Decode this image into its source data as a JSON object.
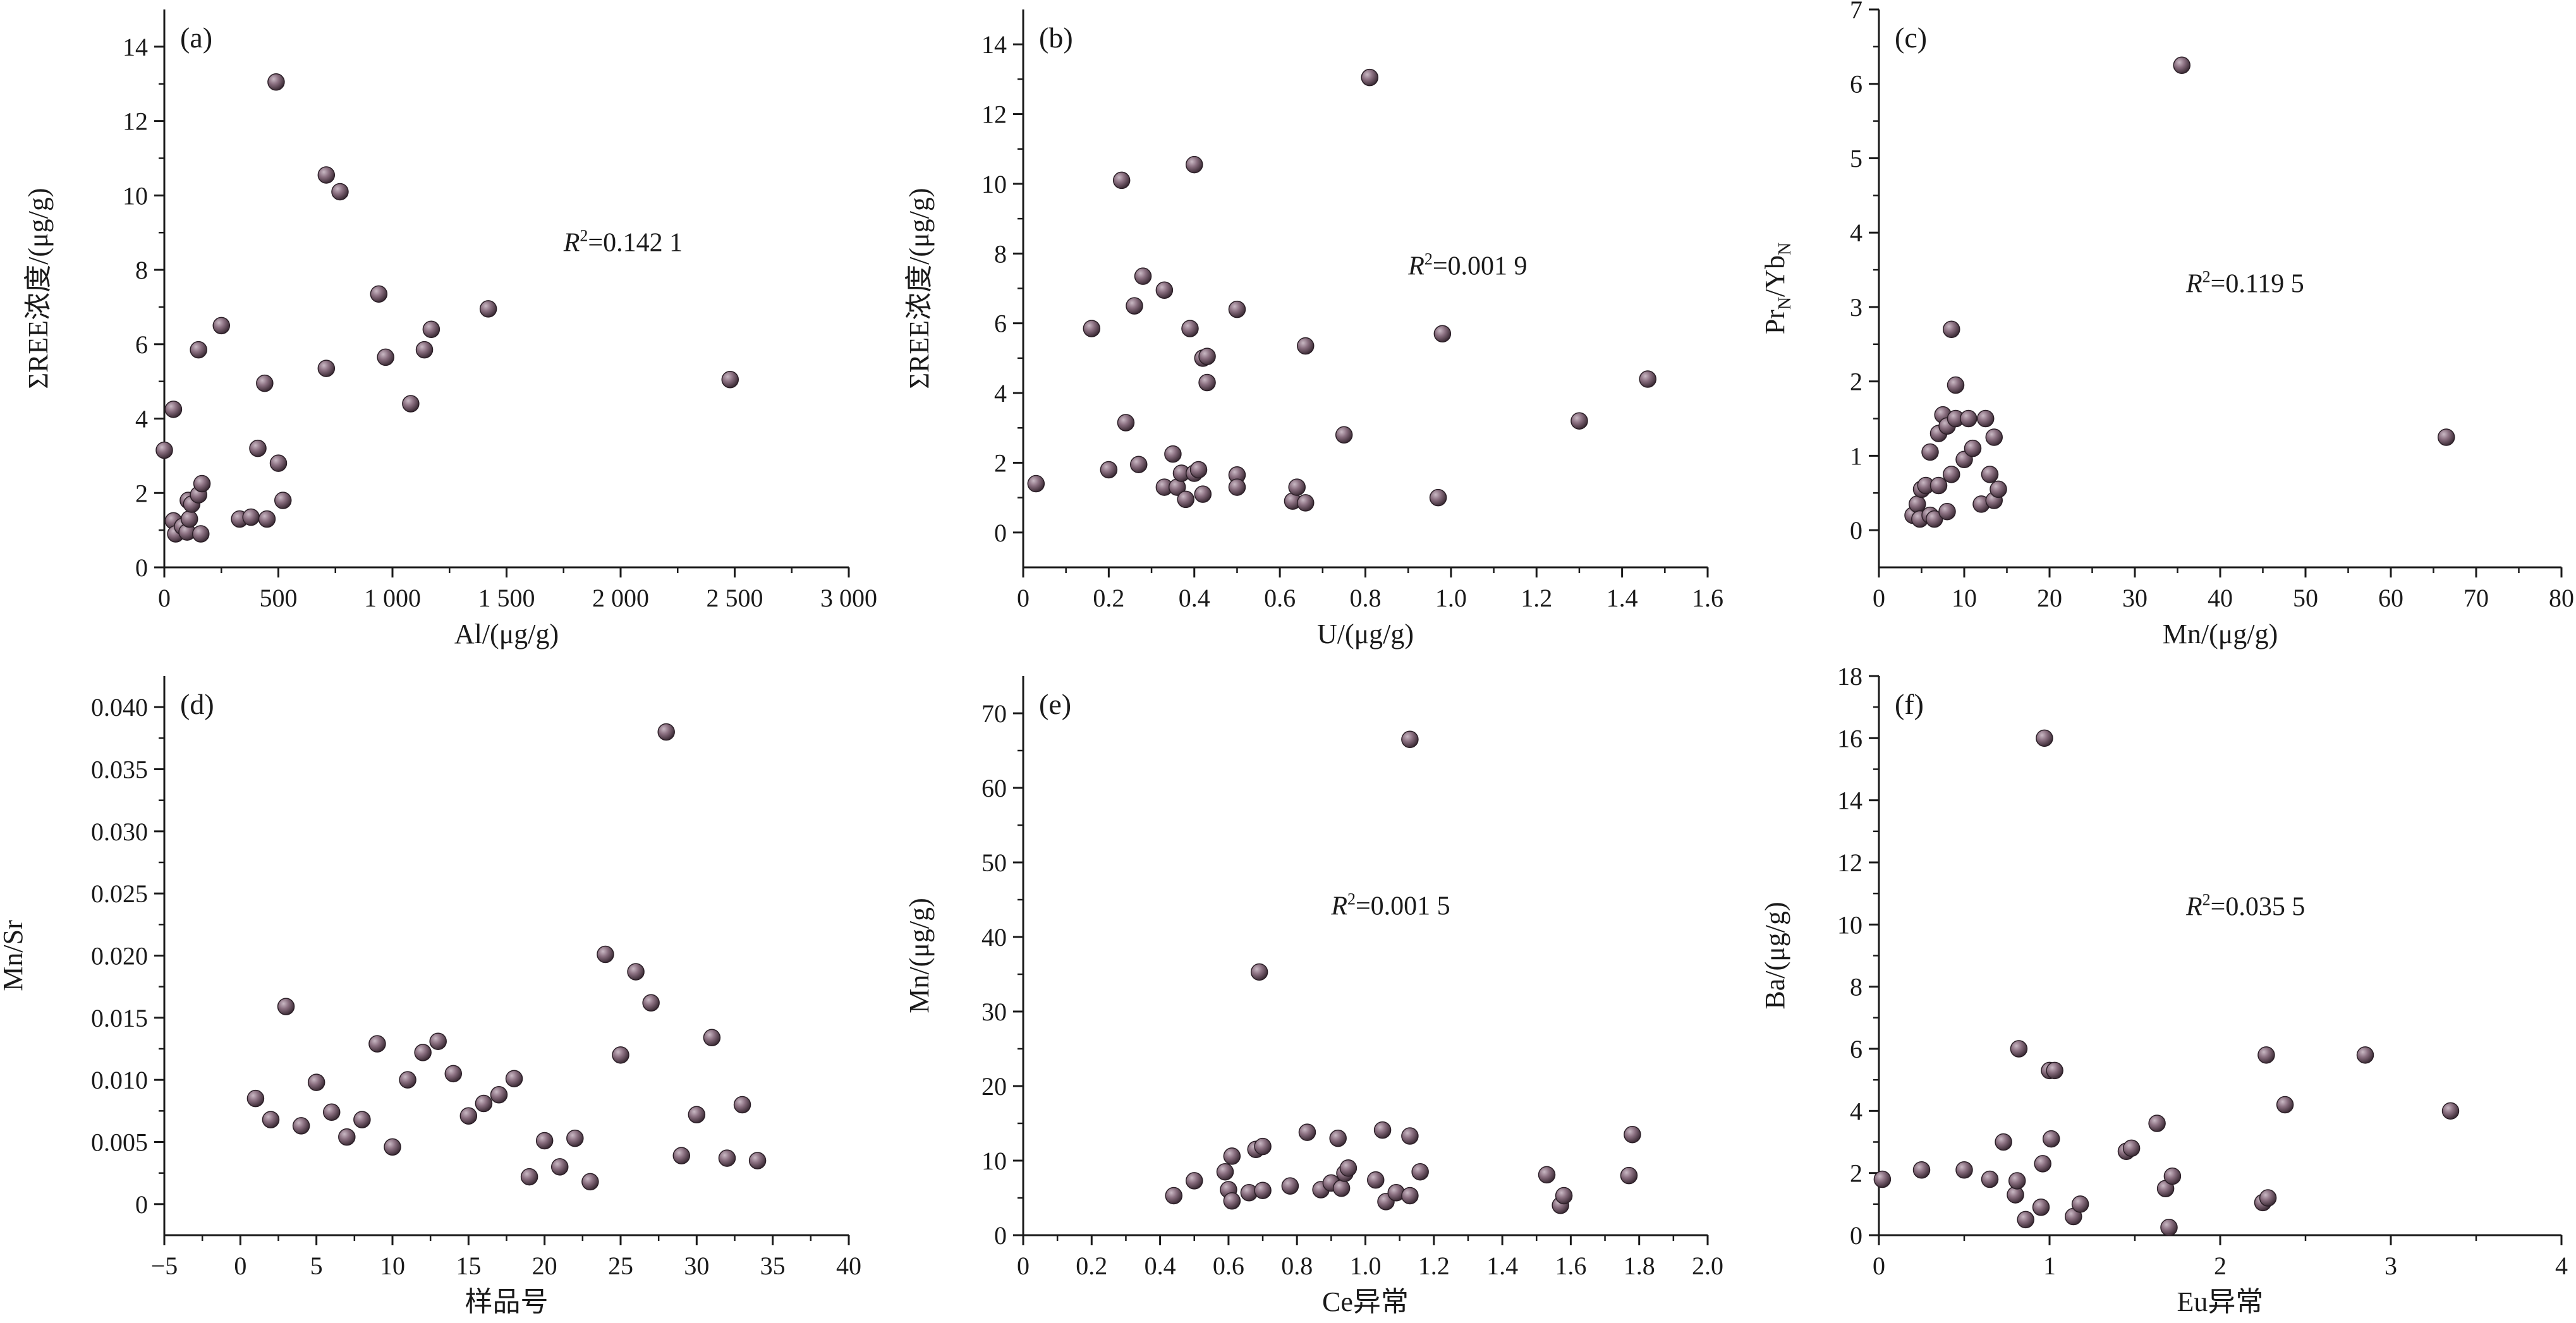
{
  "chart_data": [
    {
      "type": "scatter",
      "panel_label": "(a)",
      "xlabel": "Al/(μg/g)",
      "ylabel": "ΣREE浓度/(μg/g)",
      "xlim": [
        0,
        3000
      ],
      "ylim": [
        0,
        15
      ],
      "xticks": [
        0,
        500,
        1000,
        1500,
        2000,
        2500,
        3000
      ],
      "xtick_labels": [
        "0",
        "500",
        "1 000",
        "1 500",
        "2 000",
        "2 500",
        "3 000"
      ],
      "yticks": [
        0,
        2,
        4,
        6,
        8,
        10,
        12,
        14
      ],
      "ytick_labels": [
        "0",
        "2",
        "4",
        "6",
        "8",
        "10",
        "12",
        "14"
      ],
      "r2_label": "R",
      "r2_value": "=0.142 1",
      "annotation_pos": [
        1750,
        8.5
      ],
      "points": [
        [
          0,
          3.15
        ],
        [
          40,
          4.25
        ],
        [
          40,
          1.25
        ],
        [
          50,
          0.9
        ],
        [
          80,
          1.1
        ],
        [
          100,
          0.95
        ],
        [
          105,
          1.8
        ],
        [
          110,
          1.3
        ],
        [
          120,
          1.7
        ],
        [
          150,
          5.85
        ],
        [
          150,
          1.95
        ],
        [
          160,
          0.9
        ],
        [
          165,
          2.25
        ],
        [
          250,
          6.5
        ],
        [
          330,
          1.3
        ],
        [
          380,
          1.35
        ],
        [
          410,
          3.2
        ],
        [
          440,
          4.95
        ],
        [
          450,
          1.3
        ],
        [
          490,
          13.05
        ],
        [
          500,
          2.8
        ],
        [
          520,
          1.8
        ],
        [
          710,
          5.35
        ],
        [
          710,
          10.55
        ],
        [
          770,
          10.1
        ],
        [
          940,
          7.35
        ],
        [
          970,
          5.65
        ],
        [
          1080,
          4.4
        ],
        [
          1140,
          5.85
        ],
        [
          1170,
          6.4
        ],
        [
          1420,
          6.95
        ],
        [
          2480,
          5.05
        ]
      ]
    },
    {
      "type": "scatter",
      "panel_label": "(b)",
      "xlabel": "U/(μg/g)",
      "ylabel": "ΣREE浓度/(μg/g)",
      "xlim": [
        0,
        1.6
      ],
      "ylim": [
        -1,
        15
      ],
      "xticks": [
        0,
        0.2,
        0.4,
        0.6,
        0.8,
        1.0,
        1.2,
        1.4,
        1.6
      ],
      "xtick_labels": [
        "0",
        "0.2",
        "0.4",
        "0.6",
        "0.8",
        "1.0",
        "1.2",
        "1.4",
        "1.6"
      ],
      "yticks": [
        0,
        2,
        4,
        6,
        8,
        10,
        12,
        14
      ],
      "ytick_labels": [
        "0",
        "2",
        "4",
        "6",
        "8",
        "10",
        "12",
        "14"
      ],
      "r2_label": "R",
      "r2_value": "=0.001 9",
      "annotation_pos": [
        0.9,
        7.4
      ],
      "points": [
        [
          0.03,
          1.4
        ],
        [
          0.16,
          5.85
        ],
        [
          0.2,
          1.8
        ],
        [
          0.23,
          10.1
        ],
        [
          0.24,
          3.15
        ],
        [
          0.26,
          6.5
        ],
        [
          0.27,
          1.95
        ],
        [
          0.28,
          7.35
        ],
        [
          0.33,
          1.3
        ],
        [
          0.33,
          6.95
        ],
        [
          0.36,
          1.3
        ],
        [
          0.35,
          2.25
        ],
        [
          0.37,
          1.7
        ],
        [
          0.38,
          0.95
        ],
        [
          0.39,
          5.85
        ],
        [
          0.4,
          10.55
        ],
        [
          0.4,
          1.7
        ],
        [
          0.41,
          1.8
        ],
        [
          0.42,
          5.0
        ],
        [
          0.42,
          1.1
        ],
        [
          0.43,
          5.05
        ],
        [
          0.43,
          4.3
        ],
        [
          0.5,
          6.4
        ],
        [
          0.5,
          1.65
        ],
        [
          0.5,
          1.3
        ],
        [
          0.63,
          0.9
        ],
        [
          0.64,
          1.3
        ],
        [
          0.66,
          0.85
        ],
        [
          0.66,
          5.35
        ],
        [
          0.75,
          2.8
        ],
        [
          0.81,
          13.05
        ],
        [
          0.97,
          1.0
        ],
        [
          0.98,
          5.7
        ],
        [
          1.3,
          3.2
        ],
        [
          1.46,
          4.4
        ]
      ]
    },
    {
      "type": "scatter",
      "panel_label": "(c)",
      "xlabel": "Mn/(μg/g)",
      "ylabel_main": "Pr",
      "ylabel_sub1": "N",
      "ylabel_mid": "/Yb",
      "ylabel_sub2": "N",
      "xlim": [
        0,
        80
      ],
      "ylim": [
        -0.5,
        7
      ],
      "xticks": [
        0,
        10,
        20,
        30,
        40,
        50,
        60,
        70,
        80
      ],
      "xtick_labels": [
        "0",
        "10",
        "20",
        "30",
        "40",
        "50",
        "60",
        "70",
        "80"
      ],
      "yticks": [
        0,
        1,
        2,
        3,
        4,
        5,
        6,
        7
      ],
      "ytick_labels": [
        "0",
        "1",
        "2",
        "3",
        "4",
        "5",
        "6",
        "7"
      ],
      "r2_label": "R",
      "r2_value": "=0.119 5",
      "annotation_pos": [
        36,
        3.2
      ],
      "points": [
        [
          4,
          0.2
        ],
        [
          4.5,
          0.35
        ],
        [
          5,
          0.55
        ],
        [
          4.8,
          0.15
        ],
        [
          5.5,
          0.6
        ],
        [
          6,
          0.2
        ],
        [
          6,
          1.05
        ],
        [
          6.5,
          0.15
        ],
        [
          7,
          1.3
        ],
        [
          7,
          0.6
        ],
        [
          7.5,
          1.55
        ],
        [
          8,
          0.25
        ],
        [
          8,
          1.4
        ],
        [
          8.5,
          0.75
        ],
        [
          8.5,
          2.7
        ],
        [
          9,
          1.95
        ],
        [
          9,
          1.5
        ],
        [
          10,
          0.95
        ],
        [
          10.5,
          1.5
        ],
        [
          11,
          1.1
        ],
        [
          12,
          0.35
        ],
        [
          12.5,
          1.5
        ],
        [
          13,
          0.75
        ],
        [
          13.5,
          1.25
        ],
        [
          13.5,
          0.4
        ],
        [
          14,
          0.55
        ],
        [
          35.5,
          6.25
        ],
        [
          66.5,
          1.25
        ]
      ]
    },
    {
      "type": "scatter",
      "panel_label": "(d)",
      "xlabel": "样品号",
      "ylabel": "Mn/Sr",
      "xlim": [
        -5,
        40
      ],
      "ylim": [
        -0.0025,
        0.0425
      ],
      "xticks": [
        -5,
        0,
        5,
        10,
        15,
        20,
        25,
        30,
        35,
        40
      ],
      "xtick_labels": [
        "−5",
        "0",
        "5",
        "10",
        "15",
        "20",
        "25",
        "30",
        "35",
        "40"
      ],
      "yticks": [
        0,
        0.005,
        0.01,
        0.015,
        0.02,
        0.025,
        0.03,
        0.035,
        0.04
      ],
      "ytick_labels": [
        "0",
        "0.005",
        "0.010",
        "0.015",
        "0.020",
        "0.025",
        "0.030",
        "0.035",
        "0.040"
      ],
      "points": [
        [
          1,
          0.0085
        ],
        [
          2,
          0.0068
        ],
        [
          3,
          0.0159
        ],
        [
          4,
          0.0063
        ],
        [
          5,
          0.0098
        ],
        [
          6,
          0.0074
        ],
        [
          7,
          0.0054
        ],
        [
          8,
          0.0068
        ],
        [
          9,
          0.0129
        ],
        [
          10,
          0.0046
        ],
        [
          11,
          0.01
        ],
        [
          12,
          0.0122
        ],
        [
          13,
          0.0131
        ],
        [
          14,
          0.0105
        ],
        [
          15,
          0.0071
        ],
        [
          16,
          0.0081
        ],
        [
          17,
          0.0088
        ],
        [
          18,
          0.0101
        ],
        [
          19,
          0.0022
        ],
        [
          20,
          0.0051
        ],
        [
          21,
          0.003
        ],
        [
          22,
          0.0053
        ],
        [
          23,
          0.0018
        ],
        [
          24,
          0.0201
        ],
        [
          25,
          0.012
        ],
        [
          26,
          0.0187
        ],
        [
          27,
          0.0162
        ],
        [
          28,
          0.038
        ],
        [
          29,
          0.0039
        ],
        [
          30,
          0.0072
        ],
        [
          31,
          0.0134
        ],
        [
          32,
          0.0037
        ],
        [
          33,
          0.008
        ],
        [
          34,
          0.0035
        ]
      ]
    },
    {
      "type": "scatter",
      "panel_label": "(e)",
      "xlabel": "Ce异常",
      "ylabel": "Mn/(μg/g)",
      "xlim": [
        0,
        2.0
      ],
      "ylim": [
        0,
        75
      ],
      "xticks": [
        0,
        0.2,
        0.4,
        0.6,
        0.8,
        1.0,
        1.2,
        1.4,
        1.6,
        1.8,
        2.0
      ],
      "xtick_labels": [
        "0",
        "0.2",
        "0.4",
        "0.6",
        "0.8",
        "1.0",
        "1.2",
        "1.4",
        "1.6",
        "1.8",
        "2.0"
      ],
      "yticks": [
        0,
        10,
        20,
        30,
        40,
        50,
        60,
        70
      ],
      "ytick_labels": [
        "0",
        "10",
        "20",
        "30",
        "40",
        "50",
        "60",
        "70"
      ],
      "r2_label": "R",
      "r2_value": "=0.001 5",
      "annotation_pos": [
        0.9,
        43
      ],
      "points": [
        [
          0.44,
          5.3
        ],
        [
          0.5,
          7.3
        ],
        [
          0.59,
          8.5
        ],
        [
          0.6,
          6.1
        ],
        [
          0.61,
          4.6
        ],
        [
          0.61,
          10.6
        ],
        [
          0.66,
          5.7
        ],
        [
          0.68,
          11.5
        ],
        [
          0.69,
          35.3
        ],
        [
          0.7,
          6.0
        ],
        [
          0.7,
          11.9
        ],
        [
          0.78,
          6.6
        ],
        [
          0.83,
          13.8
        ],
        [
          0.87,
          6.1
        ],
        [
          0.9,
          7.0
        ],
        [
          0.92,
          13.0
        ],
        [
          0.93,
          6.3
        ],
        [
          0.94,
          8.3
        ],
        [
          0.95,
          9.0
        ],
        [
          1.03,
          7.4
        ],
        [
          1.05,
          14.1
        ],
        [
          1.06,
          4.5
        ],
        [
          1.09,
          5.7
        ],
        [
          1.13,
          5.3
        ],
        [
          1.13,
          13.3
        ],
        [
          1.13,
          66.5
        ],
        [
          1.16,
          8.5
        ],
        [
          1.53,
          8.1
        ],
        [
          1.57,
          4.0
        ],
        [
          1.58,
          5.3
        ],
        [
          1.77,
          8.0
        ],
        [
          1.78,
          13.5
        ]
      ]
    },
    {
      "type": "scatter",
      "panel_label": "(f)",
      "xlabel": "Eu异常",
      "ylabel": "Ba/(μg/g)",
      "xlim": [
        0,
        4
      ],
      "ylim": [
        0,
        18
      ],
      "xticks": [
        0,
        1,
        2,
        3,
        4
      ],
      "xtick_labels": [
        "0",
        "1",
        "2",
        "3",
        "4"
      ],
      "yticks": [
        0,
        2,
        4,
        6,
        8,
        10,
        12,
        14,
        16,
        18
      ],
      "ytick_labels": [
        "0",
        "2",
        "4",
        "6",
        "8",
        "10",
        "12",
        "14",
        "16",
        "18"
      ],
      "r2_label": "R",
      "r2_value": "=0.035 5",
      "annotation_pos": [
        1.8,
        10.3
      ],
      "points": [
        [
          0.02,
          1.8
        ],
        [
          0.25,
          2.1
        ],
        [
          0.5,
          2.1
        ],
        [
          0.65,
          1.8
        ],
        [
          0.73,
          3.0
        ],
        [
          0.8,
          1.3
        ],
        [
          0.81,
          1.75
        ],
        [
          0.82,
          6.0
        ],
        [
          0.86,
          0.5
        ],
        [
          0.95,
          0.9
        ],
        [
          0.96,
          2.3
        ],
        [
          0.97,
          16.0
        ],
        [
          1.0,
          5.3
        ],
        [
          1.01,
          3.1
        ],
        [
          1.03,
          5.3
        ],
        [
          1.14,
          0.6
        ],
        [
          1.18,
          1.0
        ],
        [
          1.45,
          2.7
        ],
        [
          1.48,
          2.8
        ],
        [
          1.63,
          3.6
        ],
        [
          1.68,
          1.5
        ],
        [
          1.7,
          0.25
        ],
        [
          1.72,
          1.9
        ],
        [
          2.25,
          1.05
        ],
        [
          2.27,
          5.8
        ],
        [
          2.28,
          1.2
        ],
        [
          2.38,
          4.2
        ],
        [
          2.85,
          5.8
        ],
        [
          3.35,
          4.0
        ]
      ]
    }
  ]
}
